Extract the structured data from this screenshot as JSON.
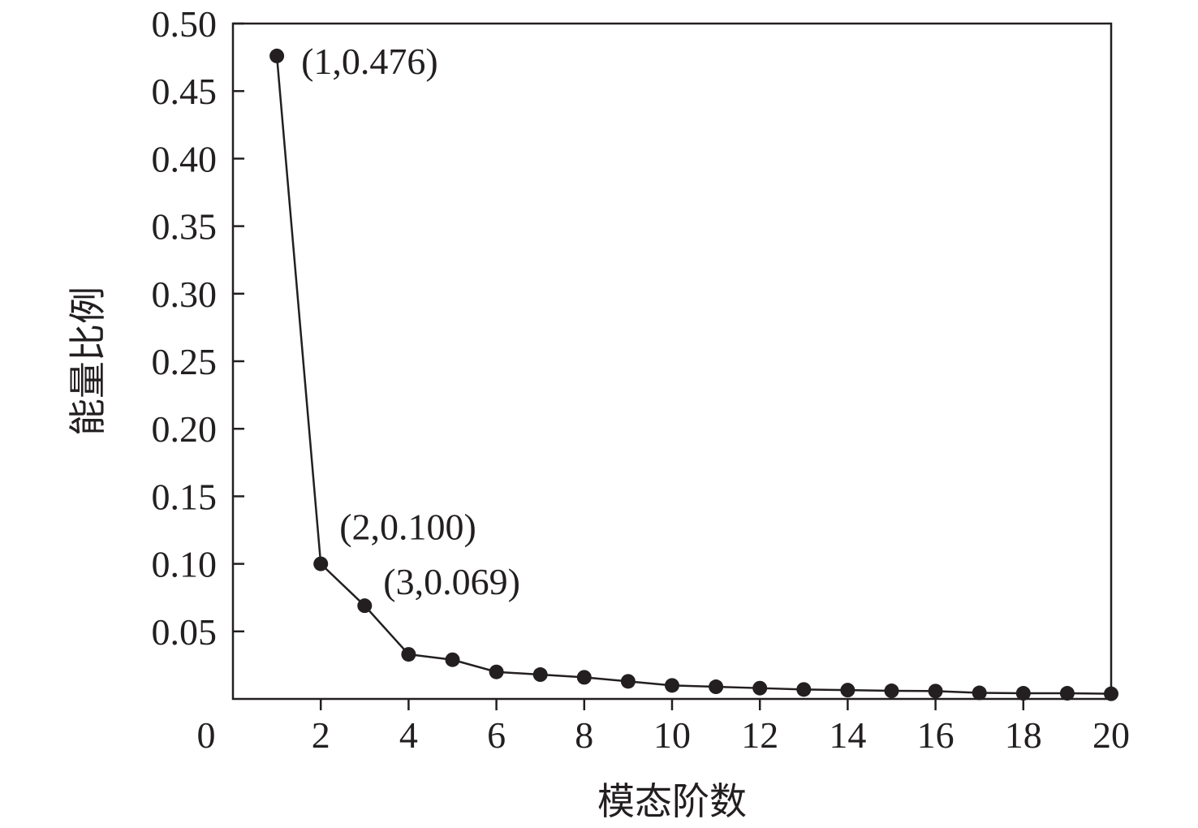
{
  "chart_data": {
    "type": "line",
    "xlabel": "模态阶数",
    "ylabel": "能量比例",
    "xlim": [
      0,
      20
    ],
    "ylim": [
      0,
      0.5
    ],
    "x_ticks": [
      {
        "value": 0,
        "label": "0"
      },
      {
        "value": 2,
        "label": "2"
      },
      {
        "value": 4,
        "label": "4"
      },
      {
        "value": 6,
        "label": "6"
      },
      {
        "value": 8,
        "label": "8"
      },
      {
        "value": 10,
        "label": "10"
      },
      {
        "value": 12,
        "label": "12"
      },
      {
        "value": 14,
        "label": "14"
      },
      {
        "value": 16,
        "label": "16"
      },
      {
        "value": 18,
        "label": "18"
      },
      {
        "value": 20,
        "label": "20"
      }
    ],
    "y_ticks": [
      {
        "value": 0.05,
        "label": "0.05"
      },
      {
        "value": 0.1,
        "label": "0.10"
      },
      {
        "value": 0.15,
        "label": "0.15"
      },
      {
        "value": 0.2,
        "label": "0.20"
      },
      {
        "value": 0.25,
        "label": "0.25"
      },
      {
        "value": 0.3,
        "label": "0.30"
      },
      {
        "value": 0.35,
        "label": "0.35"
      },
      {
        "value": 0.4,
        "label": "0.40"
      },
      {
        "value": 0.45,
        "label": "0.45"
      },
      {
        "value": 0.5,
        "label": "0.50"
      }
    ],
    "grid": false,
    "legend": "none",
    "series": [
      {
        "x": [
          1,
          2,
          3,
          4,
          5,
          6,
          7,
          8,
          9,
          10,
          11,
          12,
          13,
          14,
          15,
          16,
          17,
          18,
          19,
          20
        ],
        "values": [
          0.476,
          0.1,
          0.069,
          0.033,
          0.029,
          0.02,
          0.018,
          0.016,
          0.013,
          0.01,
          0.009,
          0.008,
          0.007,
          0.0065,
          0.006,
          0.0058,
          0.0045,
          0.0042,
          0.0042,
          0.0038
        ],
        "color": "#231f20",
        "marker": "circle"
      }
    ],
    "annotations": [
      {
        "x": 1,
        "y": 0.476,
        "text": "(1,0.476)"
      },
      {
        "x": 2,
        "y": 0.1,
        "text": "(2,0.100)"
      },
      {
        "x": 3,
        "y": 0.069,
        "text": "(3,0.069)"
      }
    ]
  }
}
